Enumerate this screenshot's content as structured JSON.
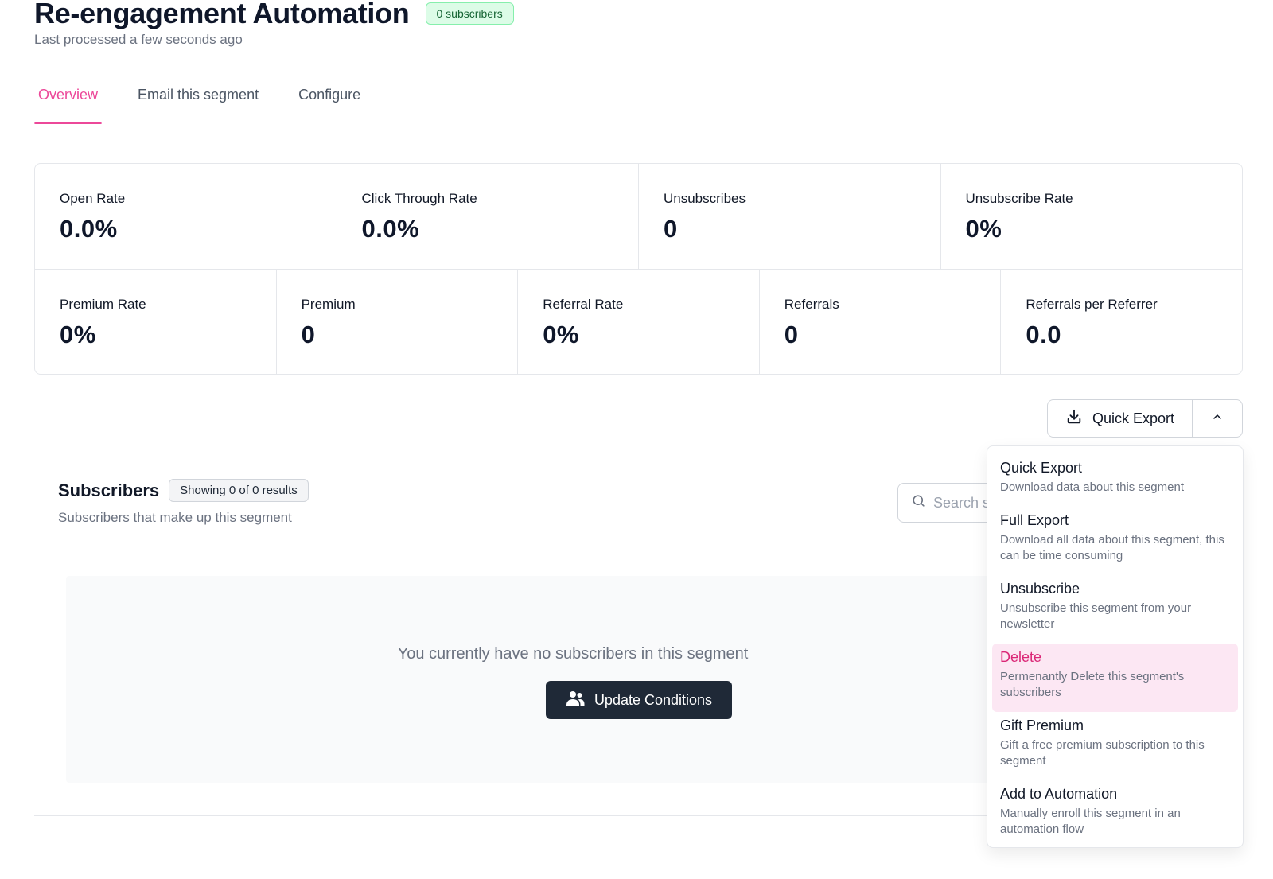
{
  "header": {
    "title": "Re-engagement Automation",
    "subscriber_badge": "0 subscribers",
    "last_processed": "Last processed a few seconds ago"
  },
  "tabs": [
    {
      "label": "Overview",
      "active": true
    },
    {
      "label": "Email this segment",
      "active": false
    },
    {
      "label": "Configure",
      "active": false
    }
  ],
  "stats": {
    "row1": [
      {
        "label": "Open Rate",
        "value": "0.0%"
      },
      {
        "label": "Click Through Rate",
        "value": "0.0%"
      },
      {
        "label": "Unsubscribes",
        "value": "0"
      },
      {
        "label": "Unsubscribe Rate",
        "value": "0%"
      }
    ],
    "row2": [
      {
        "label": "Premium Rate",
        "value": "0%"
      },
      {
        "label": "Premium",
        "value": "0"
      },
      {
        "label": "Referral Rate",
        "value": "0%"
      },
      {
        "label": "Referrals",
        "value": "0"
      },
      {
        "label": "Referrals per Referrer",
        "value": "0.0"
      }
    ]
  },
  "export": {
    "label": "Quick Export",
    "icon": "download-icon",
    "caret_icon": "chevron-up-icon"
  },
  "subscribers": {
    "title": "Subscribers",
    "showing": "Showing 0 of 0 results",
    "description": "Subscribers that make up this segment",
    "search_placeholder": "Search s",
    "empty_message": "You currently have no subscribers in this segment",
    "update_button": "Update Conditions"
  },
  "dropdown": {
    "items": [
      {
        "label": "Quick Export",
        "description": "Download data about this segment"
      },
      {
        "label": "Full Export",
        "description": "Download all data about this segment, this can be time consuming"
      },
      {
        "label": "Unsubscribe",
        "description": "Unsubscribe this segment from your newsletter"
      },
      {
        "label": "Delete",
        "description": "Permenantly Delete this segment's subscribers",
        "highlighted": true
      },
      {
        "label": "Gift Premium",
        "description": "Gift a free premium subscription to this segment"
      },
      {
        "label": "Add to Automation",
        "description": "Manually enroll this segment in an automation flow"
      }
    ]
  },
  "colors": {
    "accent": "#ec4899",
    "badge_green": "#dcfce7",
    "dark_button": "#1f2937",
    "danger_bg": "#fce7f3"
  }
}
